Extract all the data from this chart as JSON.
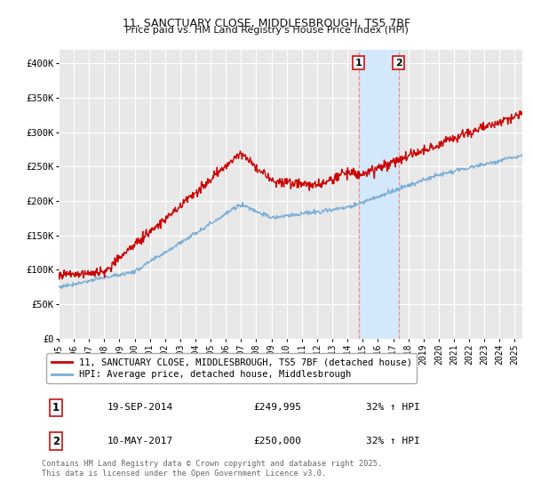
{
  "title": "11, SANCTUARY CLOSE, MIDDLESBROUGH, TS5 7BF",
  "subtitle": "Price paid vs. HM Land Registry's House Price Index (HPI)",
  "background_color": "#ffffff",
  "plot_bg_color": "#e8e8e8",
  "grid_color": "#ffffff",
  "ylim": [
    0,
    420000
  ],
  "yticks": [
    0,
    50000,
    100000,
    150000,
    200000,
    250000,
    300000,
    350000,
    400000
  ],
  "ytick_labels": [
    "£0",
    "£50K",
    "£100K",
    "£150K",
    "£200K",
    "£250K",
    "£300K",
    "£350K",
    "£400K"
  ],
  "legend_line1": "11, SANCTUARY CLOSE, MIDDLESBROUGH, TS5 7BF (detached house)",
  "legend_line2": "HPI: Average price, detached house, Middlesbrough",
  "line1_color": "#cc0000",
  "line2_color": "#7aaed6",
  "transaction1_date": "19-SEP-2014",
  "transaction1_price": "£249,995",
  "transaction1_hpi": "32% ↑ HPI",
  "transaction2_date": "10-MAY-2017",
  "transaction2_price": "£250,000",
  "transaction2_hpi": "32% ↑ HPI",
  "shade_color": "#d0e8ff",
  "vline_color": "#ff8888",
  "marker1_x": 2014.72,
  "marker2_x": 2017.36,
  "footer": "Contains HM Land Registry data © Crown copyright and database right 2025.\nThis data is licensed under the Open Government Licence v3.0.",
  "xmin": 1995,
  "xmax": 2025.5,
  "xstart": 1995,
  "xend": 2025
}
